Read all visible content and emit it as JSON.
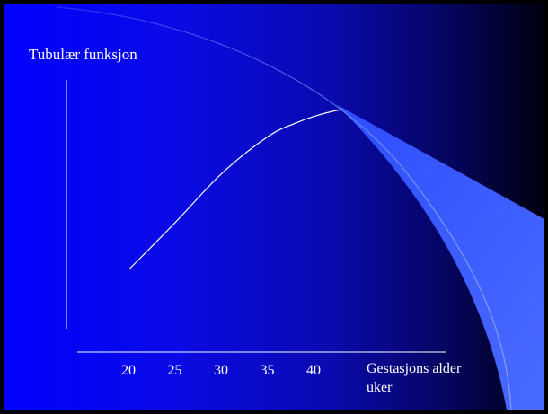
{
  "chart_data": {
    "type": "line",
    "title": "",
    "ylabel": "Tubulær funksjon",
    "xlabel_line1": "Gestasjons alder",
    "xlabel_line2": "uker",
    "x_ticks": [
      "20",
      "25",
      "30",
      "35",
      "40"
    ],
    "series": [
      {
        "x": [
          20,
          25,
          30,
          35,
          38,
          40,
          42,
          43
        ],
        "y": [
          0.05,
          0.33,
          0.62,
          0.84,
          0.92,
          0.96,
          0.99,
          1.0
        ]
      }
    ],
    "grid": false,
    "colors": {
      "line": "#ffffff",
      "background_start": "#0000ff",
      "background_end": "#000010",
      "swoosh": "#3a5fff"
    }
  }
}
